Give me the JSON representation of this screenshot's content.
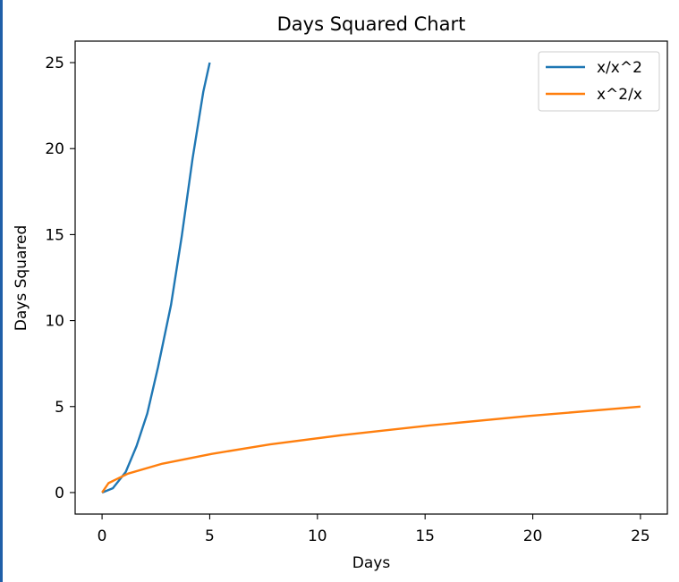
{
  "chart_data": {
    "type": "line",
    "title": "Days Squared Chart",
    "xlabel": "Days",
    "ylabel": "Days Squared",
    "xlim": [
      -1.25,
      26.25
    ],
    "ylim": [
      -1.25,
      26.25
    ],
    "xticks": [
      0,
      5,
      10,
      15,
      20,
      25
    ],
    "yticks": [
      0,
      5,
      10,
      15,
      20,
      25
    ],
    "grid": false,
    "legend_position": "top-right",
    "series": [
      {
        "name": "x/x^2",
        "color": "#1f77b4",
        "x": [
          0,
          0.5,
          1.1,
          1.6,
          2.1,
          2.6,
          3.2,
          3.7,
          4.2,
          4.7,
          5.0
        ],
        "y": [
          0,
          0.25,
          1.2,
          2.7,
          4.6,
          7.3,
          10.9,
          14.9,
          19.4,
          23.3,
          25
        ]
      },
      {
        "name": "x^2/x",
        "color": "#ff7f0e",
        "x": [
          0,
          0.3,
          1.2,
          2.8,
          5.1,
          7.8,
          11.2,
          15.2,
          19.8,
          25
        ],
        "y": [
          0,
          0.55,
          1.1,
          1.68,
          2.25,
          2.8,
          3.35,
          3.9,
          4.45,
          5.0
        ]
      }
    ]
  }
}
